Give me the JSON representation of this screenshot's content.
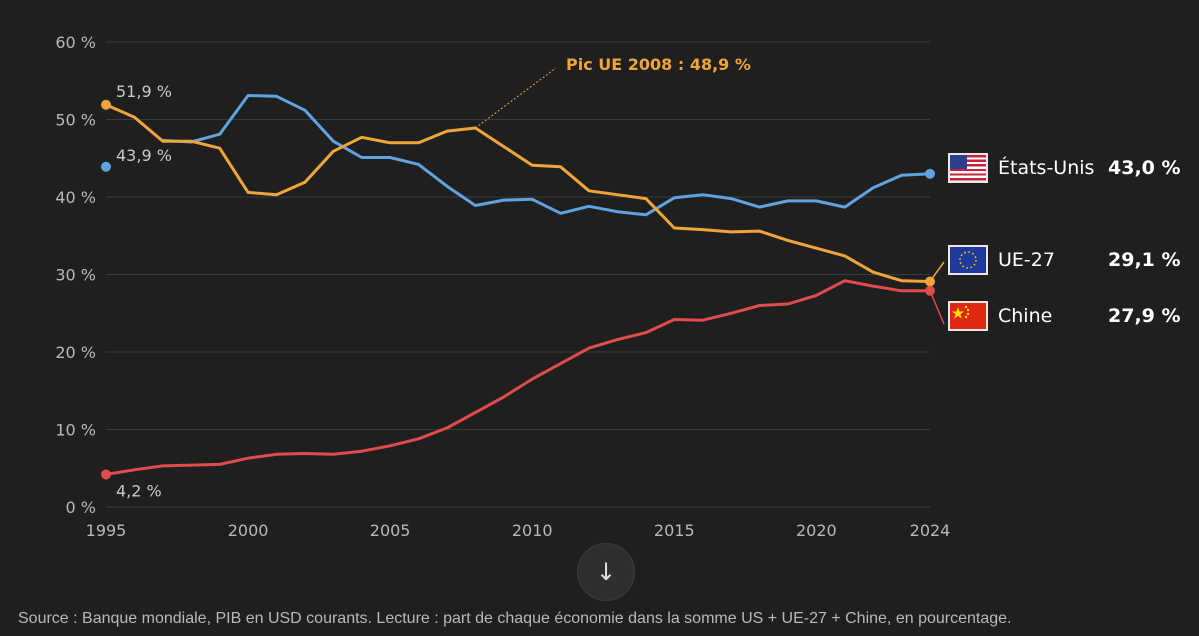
{
  "chart_data": {
    "type": "line",
    "x": [
      1995,
      1996,
      1997,
      1998,
      1999,
      2000,
      2001,
      2002,
      2003,
      2004,
      2005,
      2006,
      2007,
      2008,
      2009,
      2010,
      2011,
      2012,
      2013,
      2014,
      2015,
      2016,
      2017,
      2018,
      2019,
      2020,
      2021,
      2022,
      2023,
      2024
    ],
    "series": [
      {
        "name": "États-Unis",
        "color": "#5fa3e0",
        "values": [
          43.9,
          null,
          47.3,
          47.1,
          48.1,
          53.1,
          53.0,
          51.2,
          47.2,
          45.1,
          45.1,
          44.2,
          41.4,
          38.9,
          39.6,
          39.7,
          37.9,
          38.8,
          38.1,
          37.7,
          39.9,
          40.3,
          39.8,
          38.7,
          39.5,
          39.5,
          38.7,
          41.2,
          42.8,
          43.0
        ]
      },
      {
        "name": "UE-27",
        "color": "#f0a43a",
        "values": [
          51.9,
          50.3,
          47.2,
          47.2,
          46.3,
          40.6,
          40.3,
          41.9,
          45.9,
          47.7,
          47.0,
          47.0,
          48.5,
          48.9,
          46.5,
          44.1,
          43.9,
          40.8,
          40.3,
          39.8,
          36.0,
          35.8,
          35.5,
          35.6,
          34.4,
          33.4,
          32.4,
          30.3,
          29.2,
          29.1
        ]
      },
      {
        "name": "Chine",
        "color": "#e04c4c",
        "values": [
          4.2,
          4.8,
          5.3,
          5.4,
          5.5,
          6.3,
          6.8,
          6.9,
          6.8,
          7.2,
          7.9,
          8.8,
          10.2,
          12.2,
          14.2,
          16.5,
          18.5,
          20.5,
          21.6,
          22.5,
          24.2,
          24.1,
          25.0,
          26.0,
          26.2,
          27.3,
          29.2,
          28.5,
          27.9,
          27.9
        ]
      }
    ],
    "xlim": [
      1995,
      2024
    ],
    "ylim": [
      0,
      60
    ],
    "y_ticks": [
      "0 %",
      "10 %",
      "20 %",
      "30 %",
      "40 %",
      "50 %",
      "60 %"
    ],
    "x_ticks": [
      "1995",
      "2000",
      "2005",
      "2010",
      "2015",
      "2020",
      "2024"
    ],
    "x_tick_values": [
      1995,
      2000,
      2005,
      2010,
      2015,
      2020,
      2024
    ],
    "grid": true,
    "start_labels": {
      "us": "43,9 %",
      "eu": "51,9 %",
      "cn": "4,2 %"
    },
    "annotation": {
      "text": "Pic UE 2008 : 48,9 %",
      "year": 2008,
      "value": 48.9
    },
    "legend": [
      {
        "key": "us",
        "name": "États-Unis",
        "value": "43,0 %"
      },
      {
        "key": "eu",
        "name": "UE-27",
        "value": "29,1 %"
      },
      {
        "key": "cn",
        "name": "Chine",
        "value": "27,9 %"
      }
    ]
  },
  "controls": {
    "scroll_icon": "arrow-down-icon",
    "scroll_glyph": "↓"
  },
  "source": "Source : Banque mondiale, PIB en USD courants. Lecture : part de chaque économie dans la somme US + UE-27 + Chine, en pourcentage."
}
